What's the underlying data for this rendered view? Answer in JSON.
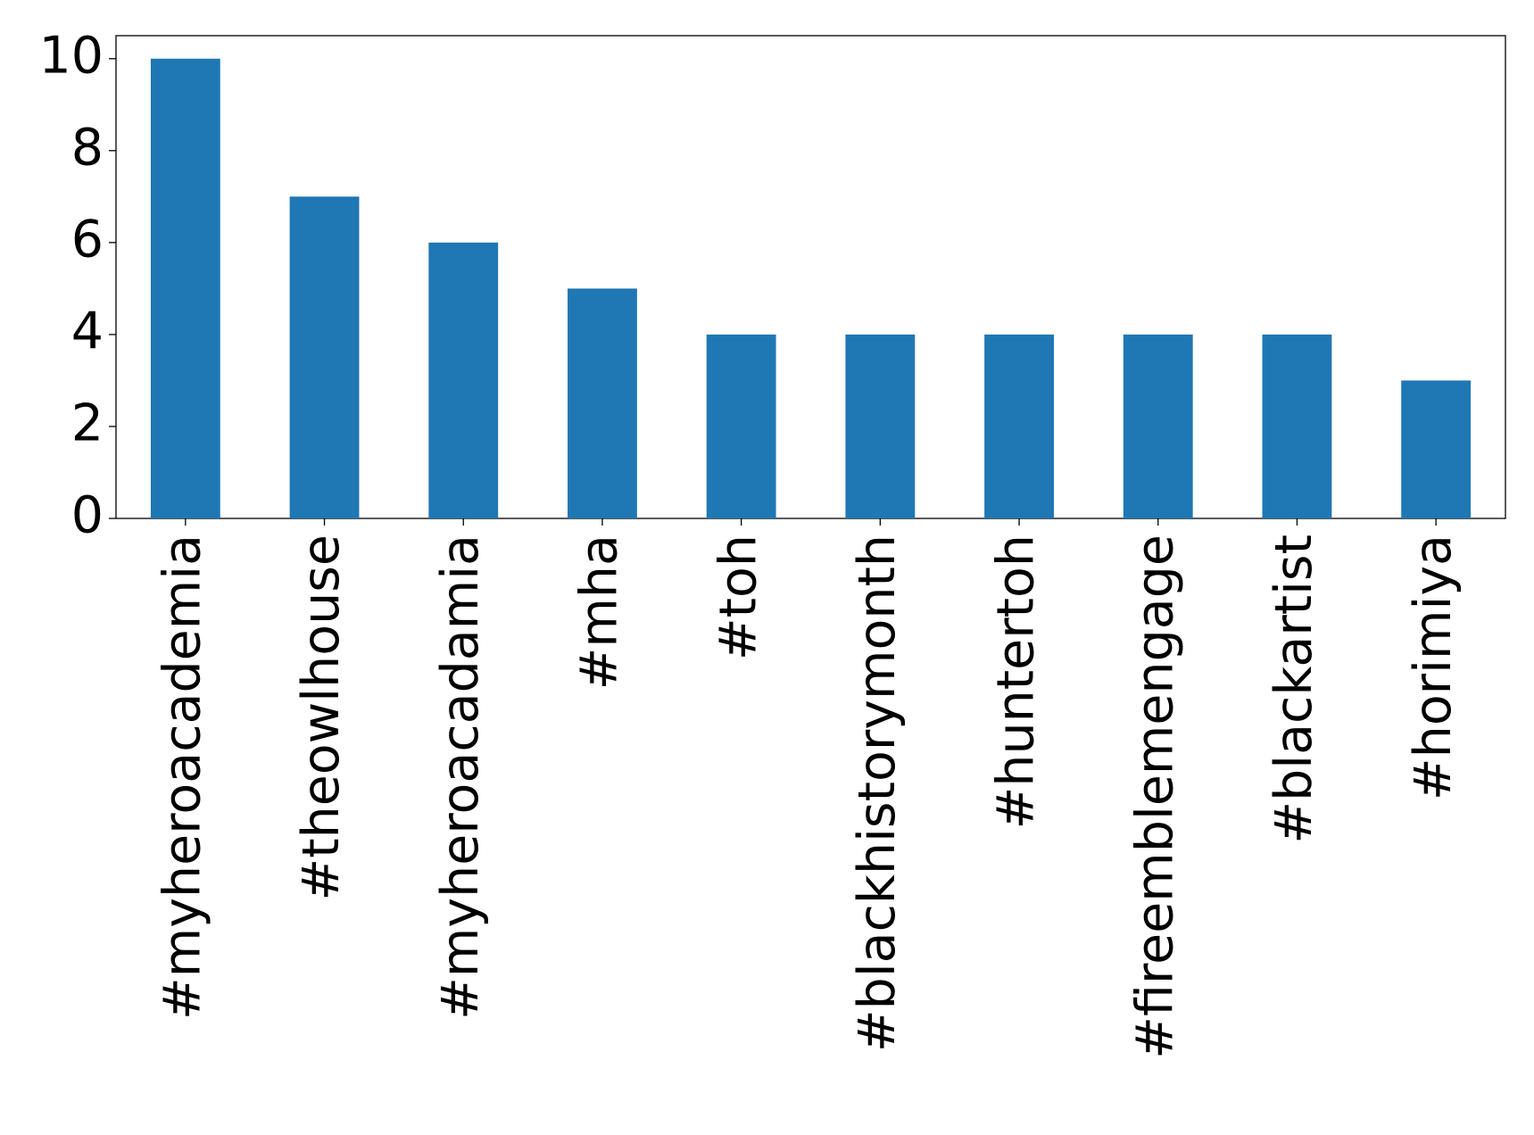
{
  "chart_data": {
    "type": "bar",
    "categories": [
      "#myheroacademia",
      "#theowlhouse",
      "#myheroacadamia",
      "#mha",
      "#toh",
      "#blackhistorymonth",
      "#huntertoh",
      "#fireemblemengage",
      "#blackartist",
      "#horimiya"
    ],
    "values": [
      10,
      7,
      6,
      5,
      4,
      4,
      4,
      4,
      4,
      3
    ],
    "color": "#1f77b4",
    "ylim": [
      0,
      10.5
    ],
    "yticks": [
      0,
      2,
      4,
      6,
      8,
      10
    ],
    "grid": false
  }
}
